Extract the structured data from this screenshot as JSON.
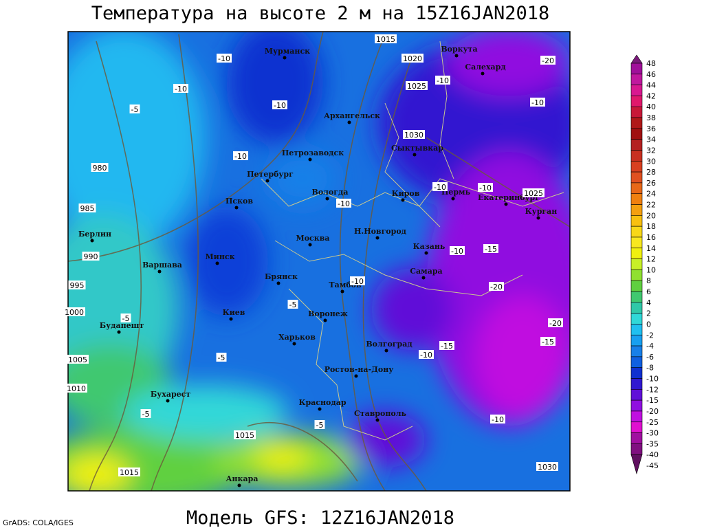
{
  "header": {
    "title": "Температура на высоте 2 м на 15Z16JAN2018"
  },
  "footer": {
    "credit": "GrADS: COLA/IGES",
    "model": "Модель GFS: 12Z16JAN2018"
  },
  "cities": [
    "Мурманск",
    "Воркута",
    "Салехард",
    "Архангельск",
    "Петрозаводск",
    "Сыктывкар",
    "Петербург",
    "Вологда",
    "Киров",
    "Пермь",
    "Екатеринбург",
    "Курган",
    "Псков",
    "Москва",
    "Н.Новгород",
    "Казань",
    "Берлин",
    "Варшава",
    "Минск",
    "Брянск",
    "Тамбов",
    "Самара",
    "Киев",
    "Воронеж",
    "Будапешт",
    "Харьков",
    "Волгоград",
    "Ростов-на-Дону",
    "Бухарест",
    "Краснодар",
    "Ставрополь",
    "Анкара"
  ],
  "isobar_labels": [
    1015,
    1020,
    1025,
    1030,
    980,
    985,
    990,
    995,
    1000,
    1005,
    1010,
    1015,
    1015,
    1030,
    1025
  ],
  "temperature_labels": [
    -10,
    -10,
    -10,
    -10,
    -10,
    -10,
    -10,
    -10,
    -10,
    -10,
    -10,
    -15,
    -15,
    -15,
    -20,
    -20,
    -20,
    -5,
    -5,
    -5,
    -5,
    -5,
    -5,
    -10,
    -10
  ],
  "colorbar": {
    "levels": [
      48,
      46,
      44,
      42,
      40,
      38,
      36,
      34,
      32,
      30,
      28,
      26,
      24,
      22,
      20,
      18,
      16,
      14,
      12,
      10,
      8,
      6,
      4,
      2,
      0,
      -2,
      -4,
      -6,
      -8,
      -10,
      -12,
      -15,
      -20,
      -25,
      -30,
      -35,
      -40,
      -45
    ],
    "colors": [
      "#7a1a7a",
      "#a0109a",
      "#c0189e",
      "#d81890",
      "#e0186c",
      "#c81838",
      "#b01818",
      "#a01010",
      "#b42020",
      "#c83020",
      "#d84020",
      "#e05020",
      "#e86818",
      "#f08010",
      "#f4a010",
      "#f8c010",
      "#f8d818",
      "#f8e820",
      "#f0f010",
      "#c8f028",
      "#90e030",
      "#60d040",
      "#40c870",
      "#30c8a8",
      "#30d8d8",
      "#20c0f0",
      "#18a0f0",
      "#1880e8",
      "#1060e0",
      "#1030d0",
      "#3018d0",
      "#6010d8",
      "#9010e0",
      "#c010e0",
      "#e010d0",
      "#a010a0",
      "#801080",
      "#601060"
    ]
  }
}
